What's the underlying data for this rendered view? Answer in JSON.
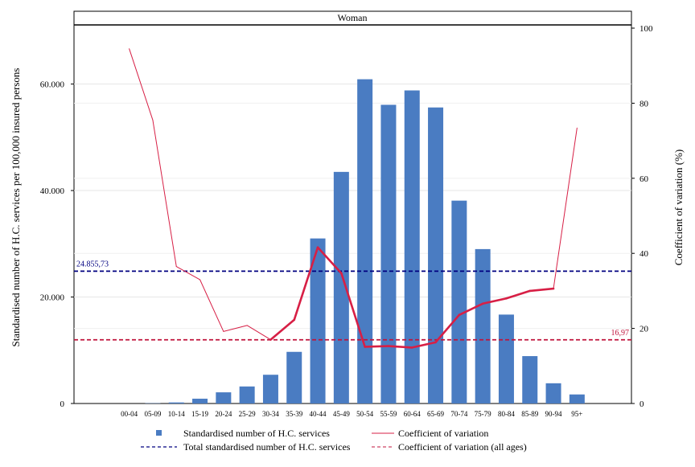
{
  "chart_data": {
    "type": "bar",
    "panel_title": "Woman",
    "categories": [
      "00-04",
      "05-09",
      "10-14",
      "15-19",
      "20-24",
      "25-29",
      "30-34",
      "35-39",
      "40-44",
      "45-49",
      "50-54",
      "55-59",
      "60-64",
      "65-69",
      "70-74",
      "75-79",
      "80-84",
      "85-89",
      "90-94",
      "95+"
    ],
    "series": [
      {
        "name": "Standardised number of H.C. services",
        "kind": "bar",
        "axis": "left",
        "color": "#4a7cc2",
        "values": [
          0,
          50,
          200,
          900,
          2100,
          3200,
          5400,
          9700,
          31000,
          43500,
          60900,
          56100,
          58800,
          55600,
          38100,
          29000,
          16700,
          8900,
          3800,
          1700
        ]
      },
      {
        "name": "Coefficient of variation",
        "kind": "line",
        "axis": "right",
        "color": "#d71f45",
        "values": [
          94.5,
          75.5,
          36.5,
          33.0,
          19.2,
          20.8,
          17.0,
          22.3,
          41.6,
          34.7,
          15.1,
          15.3,
          14.9,
          16.3,
          23.6,
          26.6,
          28.0,
          30.0,
          30.6,
          73.4
        ]
      }
    ],
    "reference_lines": [
      {
        "name": "Total standardised number of H.C. services",
        "axis": "left",
        "value": 24855.73,
        "label": "24.855,73",
        "color": "#000080"
      },
      {
        "name": "Coefficient of variation (all ages)",
        "axis": "right",
        "value": 16.97,
        "label": "16,97",
        "color": "#c0143c"
      }
    ],
    "y_left": {
      "label": "Standardised number of H.C. services per 100,000 insured persons",
      "ticks": [
        0,
        20000,
        40000,
        60000
      ],
      "tick_labels": [
        "0",
        "20.000",
        "40.000",
        "60.000"
      ],
      "range": [
        0,
        70500
      ]
    },
    "y_right": {
      "label": "Coefficient of variation (%)",
      "ticks": [
        0,
        20,
        40,
        60,
        80,
        100
      ],
      "tick_labels": [
        "0",
        "20",
        "40",
        "60",
        "80",
        "100"
      ],
      "range": [
        0,
        100
      ]
    },
    "grid": true,
    "legend": {
      "placement": "bottom",
      "items": [
        {
          "label": "Standardised number of H.C. services",
          "marker": "square",
          "color": "#4a7cc2"
        },
        {
          "label": "Coefficient of variation",
          "marker": "line",
          "color": "#d71f45"
        },
        {
          "label": "Total standardised number of H.C. services",
          "marker": "dash",
          "color": "#000080"
        },
        {
          "label": "Coefficient of variation (all ages)",
          "marker": "dash",
          "color": "#c0143c"
        }
      ]
    }
  }
}
